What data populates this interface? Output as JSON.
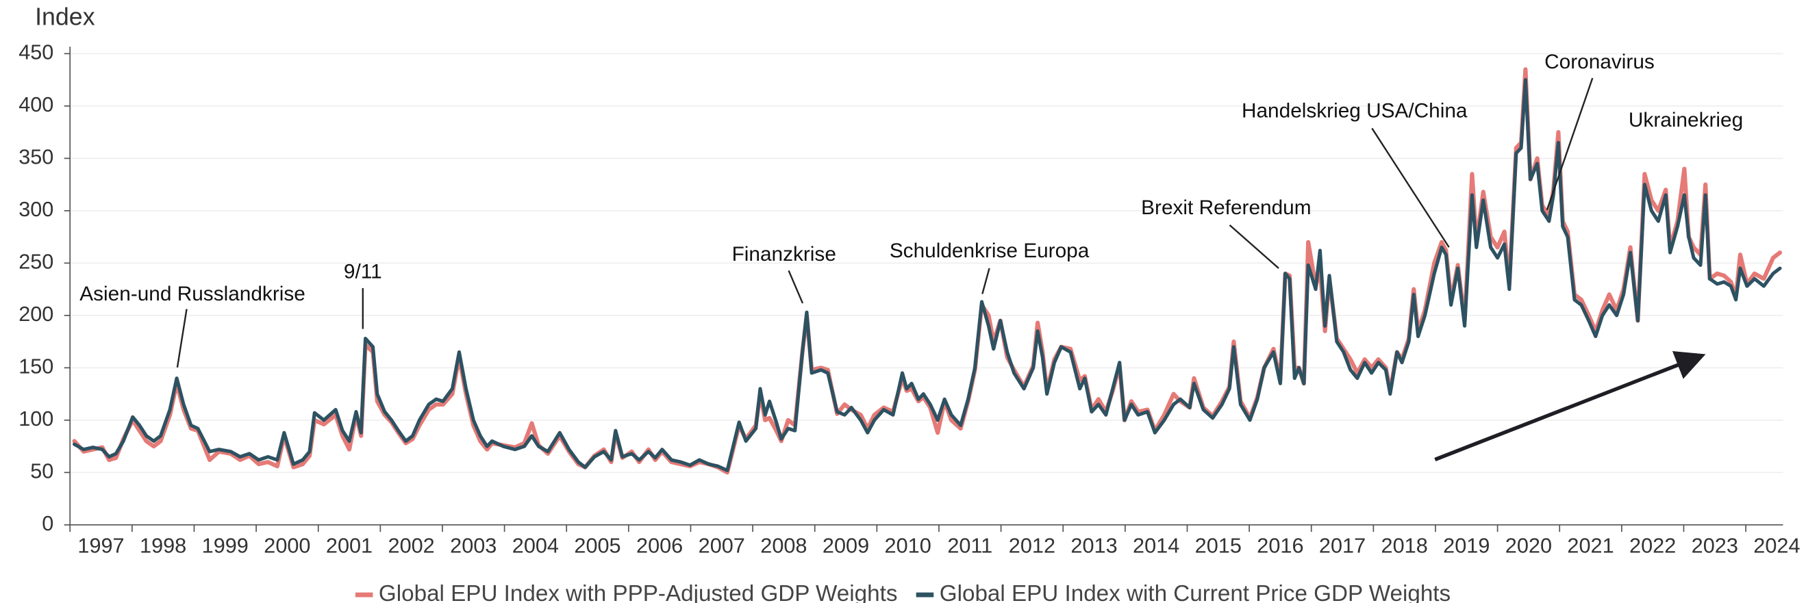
{
  "chart_data": {
    "type": "line",
    "ylabel": "Index",
    "ylim": [
      0,
      450
    ],
    "yticks": [
      0,
      50,
      100,
      150,
      200,
      250,
      300,
      350,
      400,
      450
    ],
    "xlim": [
      1997,
      2024.6
    ],
    "xticks": [
      1997,
      1998,
      1999,
      2000,
      2001,
      2002,
      2003,
      2004,
      2005,
      2006,
      2007,
      2008,
      2009,
      2010,
      2011,
      2012,
      2013,
      2014,
      2015,
      2016,
      2017,
      2018,
      2019,
      2020,
      2021,
      2022,
      2023,
      2024
    ],
    "grid": true,
    "legend": "bottom",
    "annotations": [
      "Asien-und Russlandkrise",
      "9/11",
      "Finanzkrise",
      "Schuldenkrise Europa",
      "Brexit Referendum",
      "Handelskrieg USA/China",
      "Coronavirus",
      "Ukrainekrieg"
    ],
    "x": [
      1997.07,
      1997.22,
      1997.37,
      1997.52,
      1997.63,
      1997.74,
      1997.86,
      1998.01,
      1998.12,
      1998.23,
      1998.35,
      1998.46,
      1998.61,
      1998.72,
      1998.83,
      1998.95,
      1999.06,
      1999.25,
      1999.4,
      1999.59,
      1999.74,
      1999.89,
      2000.04,
      2000.19,
      2000.34,
      2000.45,
      2000.6,
      2000.75,
      2000.86,
      2000.94,
      2001.09,
      2001.28,
      2001.39,
      2001.5,
      2001.61,
      2001.69,
      2001.76,
      2001.88,
      2001.95,
      2002.07,
      2002.18,
      2002.29,
      2002.41,
      2002.52,
      2002.63,
      2002.78,
      2002.9,
      2003.01,
      2003.16,
      2003.27,
      2003.38,
      2003.5,
      2003.61,
      2003.72,
      2003.8,
      2003.98,
      2004.17,
      2004.32,
      2004.44,
      2004.55,
      2004.7,
      2004.89,
      2005.04,
      2005.19,
      2005.3,
      2005.45,
      2005.6,
      2005.72,
      2005.79,
      2005.9,
      2006.05,
      2006.17,
      2006.32,
      2006.43,
      2006.54,
      2006.69,
      2006.84,
      2006.99,
      2007.14,
      2007.29,
      2007.44,
      2007.59,
      2007.78,
      2007.89,
      2008.05,
      2008.12,
      2008.2,
      2008.27,
      2008.38,
      2008.46,
      2008.57,
      2008.68,
      2008.8,
      2008.87,
      2008.95,
      2009.1,
      2009.21,
      2009.36,
      2009.48,
      2009.59,
      2009.74,
      2009.85,
      2009.96,
      2010.11,
      2010.26,
      2010.41,
      2010.48,
      2010.56,
      2010.67,
      2010.75,
      2010.86,
      2010.98,
      2011.09,
      2011.2,
      2011.35,
      2011.47,
      2011.58,
      2011.69,
      2011.8,
      2011.88,
      2011.99,
      2012.1,
      2012.21,
      2012.37,
      2012.52,
      2012.59,
      2012.67,
      2012.74,
      2012.86,
      2012.97,
      2013.12,
      2013.27,
      2013.35,
      2013.46,
      2013.57,
      2013.69,
      2013.8,
      2013.91,
      2013.99,
      2014.1,
      2014.21,
      2014.36,
      2014.48,
      2014.63,
      2014.78,
      2014.89,
      2015.04,
      2015.11,
      2015.26,
      2015.41,
      2015.56,
      2015.68,
      2015.75,
      2015.86,
      2016.01,
      2016.13,
      2016.24,
      2016.39,
      2016.5,
      2016.58,
      2016.65,
      2016.73,
      2016.8,
      2016.88,
      2016.95,
      2017.07,
      2017.14,
      2017.22,
      2017.29,
      2017.41,
      2017.52,
      2017.63,
      2017.74,
      2017.86,
      2017.97,
      2018.08,
      2018.2,
      2018.27,
      2018.38,
      2018.46,
      2018.57,
      2018.65,
      2018.72,
      2018.83,
      2018.98,
      2019.1,
      2019.17,
      2019.25,
      2019.36,
      2019.47,
      2019.59,
      2019.66,
      2019.77,
      2019.89,
      2020.0,
      2020.11,
      2020.19,
      2020.3,
      2020.38,
      2020.45,
      2020.53,
      2020.64,
      2020.72,
      2020.83,
      2020.9,
      2020.98,
      2021.05,
      2021.13,
      2021.24,
      2021.35,
      2021.47,
      2021.58,
      2021.69,
      2021.8,
      2021.92,
      2022.03,
      2022.14,
      2022.26,
      2022.37,
      2022.48,
      2022.59,
      2022.71,
      2022.78,
      2022.9,
      2023.01,
      2023.08,
      2023.16,
      2023.27,
      2023.35,
      2023.42,
      2023.54,
      2023.65,
      2023.76,
      2023.84,
      2023.91,
      2024.02,
      2024.14,
      2024.29,
      2024.44,
      2024.55
    ],
    "series": [
      {
        "name": "Global EPU Index with PPP-Adjusted GDP Weights",
        "color": "#e57a76",
        "values": [
          80,
          70,
          72,
          74,
          62,
          64,
          82,
          100,
          90,
          80,
          75,
          80,
          105,
          135,
          110,
          92,
          90,
          62,
          70,
          68,
          62,
          66,
          58,
          60,
          56,
          85,
          55,
          58,
          66,
          100,
          96,
          105,
          85,
          72,
          105,
          85,
          172,
          165,
          118,
          105,
          98,
          88,
          78,
          82,
          95,
          110,
          115,
          115,
          125,
          160,
          125,
          95,
          80,
          72,
          78,
          76,
          74,
          78,
          97,
          76,
          68,
          85,
          70,
          58,
          55,
          66,
          72,
          60,
          88,
          64,
          70,
          60,
          72,
          62,
          70,
          60,
          58,
          56,
          60,
          58,
          55,
          50,
          95,
          82,
          95,
          125,
          100,
          102,
          90,
          80,
          100,
          95,
          165,
          200,
          148,
          150,
          148,
          106,
          115,
          110,
          105,
          92,
          105,
          112,
          108,
          140,
          128,
          130,
          118,
          122,
          112,
          88,
          118,
          100,
          92,
          118,
          148,
          210,
          200,
          175,
          195,
          160,
          148,
          132,
          152,
          193,
          165,
          128,
          158,
          170,
          168,
          138,
          142,
          110,
          120,
          108,
          128,
          152,
          100,
          118,
          108,
          110,
          90,
          105,
          125,
          118,
          112,
          140,
          112,
          104,
          118,
          132,
          175,
          118,
          102,
          122,
          150,
          168,
          138,
          240,
          238,
          150,
          150,
          135,
          270,
          228,
          245,
          185,
          235,
          178,
          168,
          158,
          145,
          158,
          150,
          158,
          150,
          128,
          165,
          158,
          178,
          225,
          185,
          205,
          250,
          270,
          262,
          215,
          248,
          195,
          335,
          270,
          318,
          275,
          265,
          280,
          230,
          360,
          365,
          435,
          330,
          350,
          305,
          295,
          320,
          375,
          290,
          280,
          220,
          215,
          200,
          185,
          205,
          220,
          205,
          225,
          265,
          195,
          335,
          310,
          300,
          320,
          265,
          290,
          340,
          275,
          265,
          258,
          325,
          235,
          240,
          238,
          232,
          218,
          258,
          230,
          240,
          235,
          255,
          260
        ]
      },
      {
        "name": "Global EPU Index with Current Price GDP Weights",
        "color": "#2d5262",
        "values": [
          77,
          72,
          74,
          72,
          65,
          68,
          80,
          103,
          95,
          85,
          80,
          85,
          110,
          140,
          115,
          95,
          92,
          70,
          72,
          70,
          65,
          68,
          62,
          65,
          62,
          88,
          58,
          62,
          70,
          107,
          100,
          110,
          90,
          80,
          108,
          88,
          178,
          170,
          125,
          108,
          100,
          90,
          80,
          85,
          100,
          115,
          120,
          118,
          130,
          165,
          130,
          100,
          85,
          75,
          80,
          75,
          72,
          75,
          85,
          75,
          70,
          88,
          72,
          60,
          55,
          65,
          70,
          62,
          90,
          65,
          68,
          62,
          70,
          64,
          72,
          62,
          60,
          57,
          62,
          58,
          56,
          52,
          98,
          80,
          92,
          130,
          105,
          118,
          98,
          82,
          92,
          90,
          165,
          203,
          145,
          148,
          145,
          108,
          105,
          112,
          100,
          88,
          100,
          110,
          105,
          145,
          130,
          135,
          120,
          125,
          115,
          100,
          120,
          105,
          95,
          120,
          150,
          213,
          190,
          168,
          195,
          165,
          145,
          130,
          150,
          185,
          160,
          125,
          155,
          170,
          165,
          130,
          140,
          108,
          115,
          105,
          130,
          155,
          100,
          115,
          105,
          108,
          88,
          100,
          115,
          120,
          112,
          135,
          110,
          102,
          115,
          130,
          170,
          115,
          100,
          120,
          150,
          165,
          135,
          240,
          235,
          140,
          150,
          135,
          248,
          225,
          262,
          190,
          238,
          175,
          165,
          148,
          140,
          155,
          145,
          155,
          148,
          125,
          165,
          155,
          175,
          220,
          180,
          200,
          240,
          265,
          258,
          210,
          245,
          190,
          315,
          265,
          310,
          265,
          255,
          268,
          225,
          355,
          360,
          425,
          330,
          345,
          300,
          290,
          315,
          365,
          285,
          275,
          215,
          210,
          195,
          180,
          200,
          210,
          200,
          220,
          260,
          195,
          325,
          300,
          290,
          315,
          260,
          285,
          315,
          275,
          255,
          248,
          315,
          235,
          230,
          232,
          228,
          215,
          245,
          228,
          235,
          228,
          240,
          245
        ]
      }
    ]
  }
}
